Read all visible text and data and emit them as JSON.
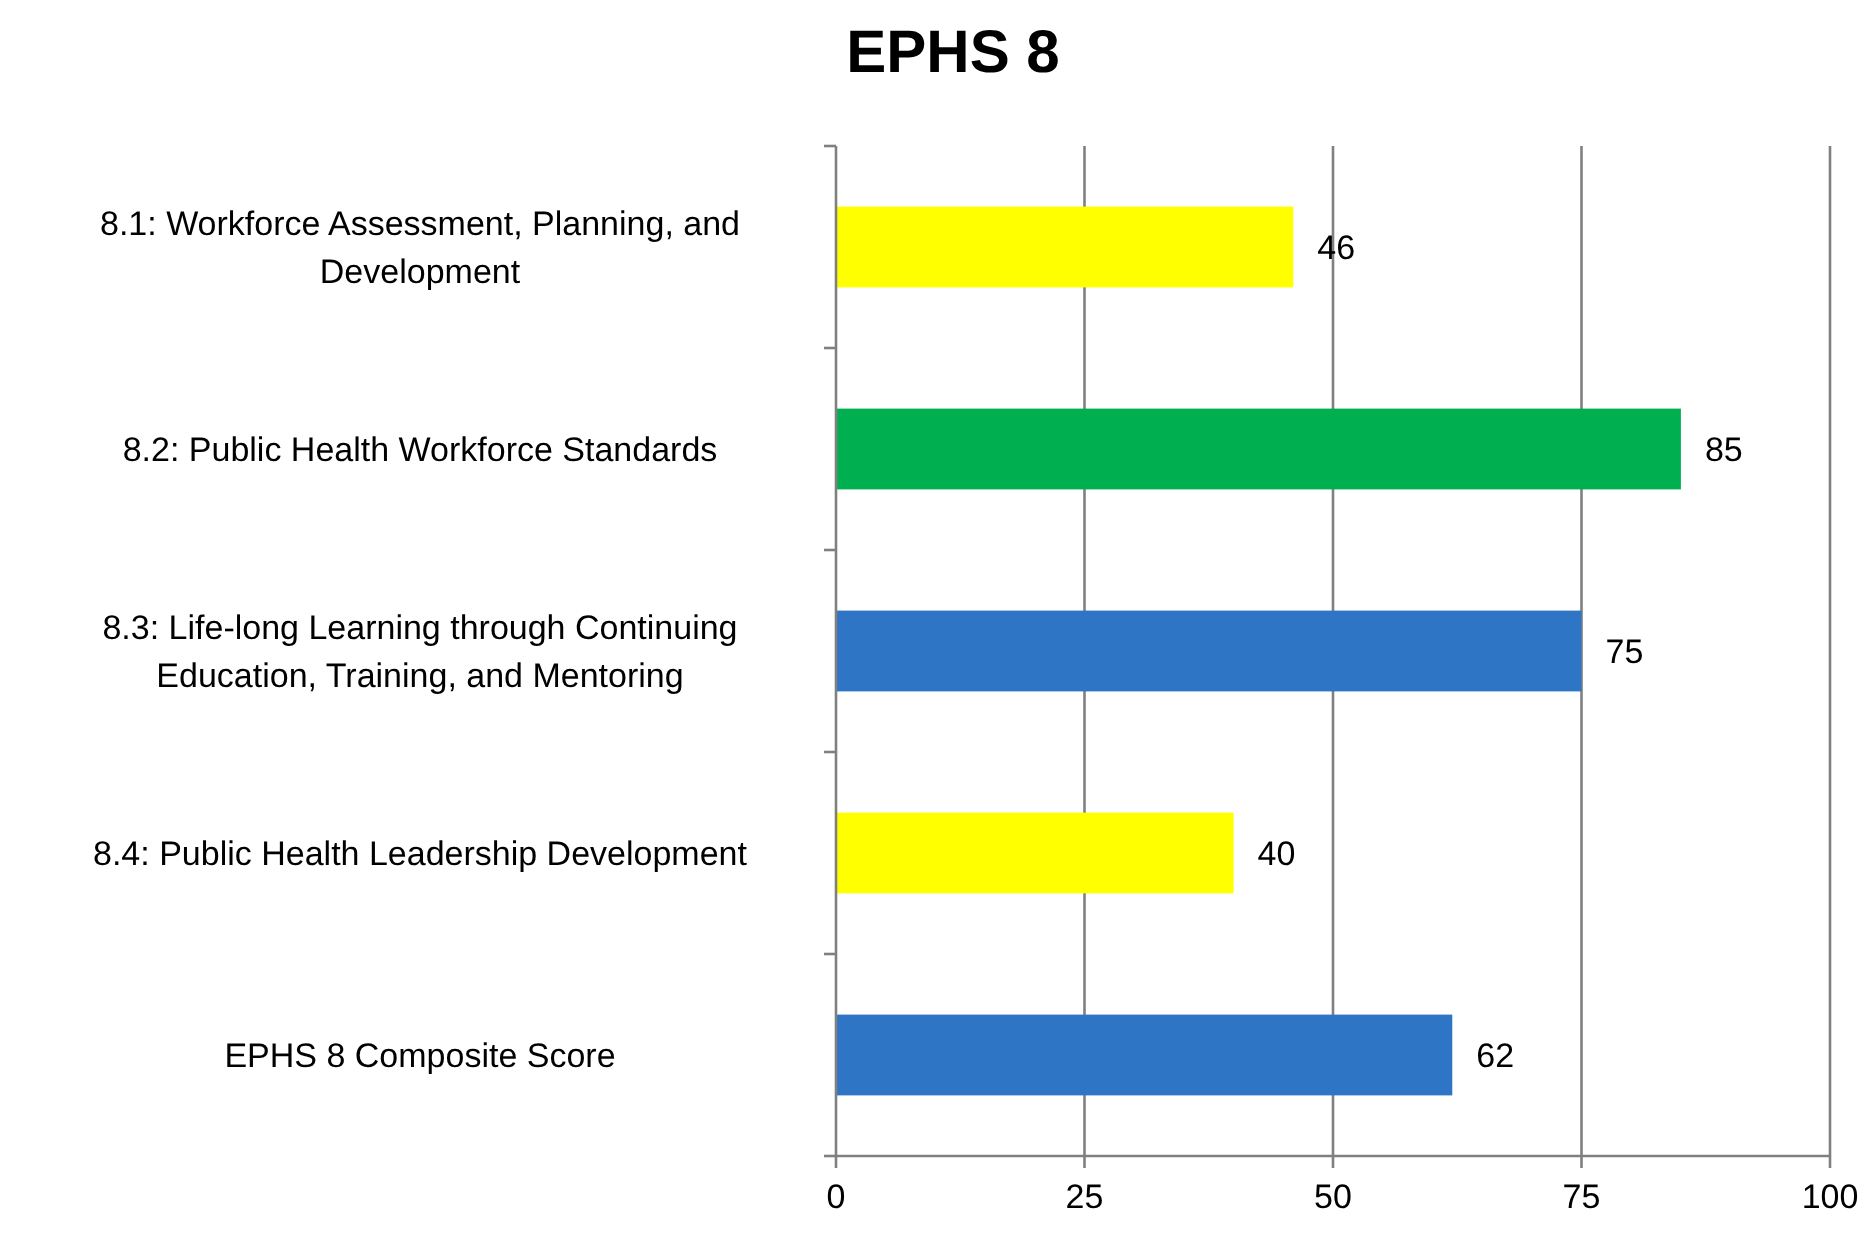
{
  "chart_data": {
    "type": "bar",
    "title": "EPHS 8",
    "orientation": "horizontal",
    "categories": [
      "8.1: Workforce Assessment, Planning, and Development",
      "8.2: Public Health Workforce Standards",
      "8.3: Life-long Learning through Continuing Education, Training, and Mentoring",
      "8.4: Public Health Leadership Development",
      "EPHS 8 Composite Score"
    ],
    "values": [
      46,
      85,
      75,
      40,
      62
    ],
    "colors": [
      "#ffff00",
      "#00b050",
      "#2e75c6",
      "#ffff00",
      "#2e75c6"
    ],
    "xlim": [
      0,
      100
    ],
    "xticks": [
      0,
      25,
      50,
      75,
      100
    ],
    "grid": "x",
    "data_labels": true
  }
}
